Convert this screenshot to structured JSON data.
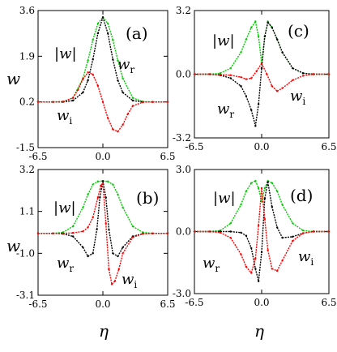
{
  "figure": {
    "ylabel": "w",
    "xlabel": "η"
  },
  "chart_data": [
    {
      "type": "line",
      "panel": "(a)",
      "xlim": [
        -6.5,
        6.5
      ],
      "ylim": [
        -1.5,
        3.6
      ],
      "xticks": [
        -6.5,
        0.0,
        6.5
      ],
      "yticks": [
        3.6,
        1.9,
        0.2,
        -1.5
      ],
      "xtick_labels": [
        "-6.5",
        "0.0",
        "6.5"
      ],
      "ytick_labels": [
        "3.6",
        "1.9",
        "0.2",
        "-1.5"
      ],
      "series": [
        {
          "name": "|w|",
          "color": "#00cc00",
          "x": [
            -6.5,
            -5,
            -4,
            -3,
            -2,
            -1.5,
            -1,
            -0.5,
            0,
            0.5,
            1,
            1.5,
            2,
            3,
            4,
            5,
            6.5
          ],
          "y": [
            0.2,
            0.2,
            0.21,
            0.35,
            1.08,
            1.74,
            2.51,
            3.12,
            3.35,
            3.12,
            2.51,
            1.74,
            1.08,
            0.35,
            0.21,
            0.2,
            0.2
          ]
        },
        {
          "name": "w_r",
          "color": "#000000",
          "x": [
            -6.5,
            -5,
            -4,
            -3,
            -2,
            -1.5,
            -1,
            -0.5,
            0,
            0.5,
            1,
            1.5,
            2,
            3,
            4,
            5,
            6.5
          ],
          "y": [
            0.2,
            0.2,
            0.2,
            0.25,
            0.55,
            1.0,
            1.78,
            2.75,
            3.35,
            2.75,
            1.78,
            1.0,
            0.55,
            0.25,
            0.2,
            0.2,
            0.2
          ]
        },
        {
          "name": "w_i",
          "color": "#ff0000",
          "x": [
            -6.5,
            -5,
            -4,
            -3,
            -2.5,
            -2,
            -1.5,
            -1,
            -0.5,
            0,
            0.5,
            1,
            1.5,
            2,
            2.5,
            3,
            4,
            5,
            6.5
          ],
          "y": [
            0.2,
            0.2,
            0.21,
            0.35,
            0.65,
            1.05,
            1.3,
            1.22,
            0.8,
            0.2,
            -0.4,
            -0.82,
            -0.9,
            -0.65,
            -0.25,
            0.05,
            0.19,
            0.2,
            0.2
          ]
        }
      ],
      "annotations": [
        {
          "text": "|w|"
        },
        {
          "text": "w_r"
        },
        {
          "text": "w_i"
        }
      ]
    },
    {
      "type": "line",
      "panel": "(c)",
      "xlim": [
        -6.5,
        6.5
      ],
      "ylim": [
        -3.2,
        3.2
      ],
      "xticks": [
        -6.5,
        0.0,
        6.5
      ],
      "yticks": [
        3.2,
        0.0,
        -3.2
      ],
      "xtick_labels": [
        "-6.5",
        "0.0",
        "6.5"
      ],
      "ytick_labels": [
        "3.2",
        "0.0",
        "-3.2"
      ],
      "series": [
        {
          "name": "|w|",
          "color": "#00cc00",
          "x": [
            -6.5,
            -5,
            -4,
            -3,
            -2,
            -1.5,
            -1,
            -0.6,
            -0.3,
            0,
            0.3,
            0.6,
            1,
            1.5,
            2,
            3,
            4,
            5,
            6.5
          ],
          "y": [
            0,
            0,
            0.05,
            0.3,
            1.1,
            1.75,
            2.35,
            2.65,
            1.9,
            0.55,
            1.9,
            2.65,
            2.35,
            1.75,
            1.1,
            0.3,
            0.05,
            0,
            0
          ]
        },
        {
          "name": "w_r",
          "color": "#000000",
          "x": [
            -6.5,
            -5,
            -4,
            -3,
            -2,
            -1.5,
            -1,
            -0.6,
            -0.3,
            0,
            0.3,
            0.6,
            1,
            1.5,
            2,
            3,
            4,
            5,
            6.5
          ],
          "y": [
            0,
            0,
            -0.05,
            -0.2,
            -0.6,
            -1.1,
            -1.8,
            -2.6,
            -1.5,
            0.3,
            1.9,
            2.6,
            2.35,
            1.75,
            1.1,
            0.3,
            0.05,
            0,
            0
          ]
        },
        {
          "name": "w_i",
          "color": "#ff0000",
          "x": [
            -6.5,
            -5,
            -4,
            -3,
            -2,
            -1.5,
            -1,
            -0.5,
            0,
            0.5,
            1,
            1.5,
            2,
            3,
            4,
            5,
            6.5
          ],
          "y": [
            0,
            0,
            -0.02,
            -0.05,
            -0.15,
            -0.25,
            -0.2,
            0.15,
            0.55,
            0.0,
            -0.6,
            -0.85,
            -0.7,
            -0.3,
            -0.08,
            0,
            0
          ]
        }
      ],
      "annotations": [
        {
          "text": "|w|"
        },
        {
          "text": "w_r"
        },
        {
          "text": "w_i"
        }
      ]
    },
    {
      "type": "line",
      "panel": "(b)",
      "xlim": [
        -6.5,
        6.5
      ],
      "ylim": [
        -3.1,
        3.2
      ],
      "xticks": [
        -6.5,
        0.0,
        6.5
      ],
      "yticks": [
        3.2,
        1.1,
        -1.0,
        -3.1
      ],
      "xtick_labels": [
        "-6.5",
        "0.0",
        "6.5"
      ],
      "ytick_labels": [
        "3.2",
        "1.1",
        "-1.0",
        "-3.1"
      ],
      "series": [
        {
          "name": "|w|",
          "color": "#00cc00",
          "x": [
            -6.5,
            -5,
            -4,
            -3,
            -2,
            -1.5,
            -1,
            -0.5,
            0,
            0.5,
            1,
            1.5,
            2,
            3,
            4,
            5,
            6.5
          ],
          "y": [
            0,
            0,
            0.05,
            0.35,
            1.3,
            1.95,
            2.45,
            2.6,
            2.62,
            2.6,
            2.45,
            1.95,
            1.3,
            0.35,
            0.05,
            0,
            0
          ]
        },
        {
          "name": "w_r",
          "color": "#000000",
          "x": [
            -6.5,
            -5,
            -4,
            -3,
            -2,
            -1.5,
            -1,
            -0.6,
            -0.3,
            0,
            0.3,
            0.6,
            1,
            1.5,
            2,
            3,
            4,
            5,
            6.5
          ],
          "y": [
            0,
            0,
            -0.02,
            -0.15,
            -0.7,
            -1.15,
            -1.0,
            0.2,
            1.8,
            2.62,
            1.8,
            0.2,
            -1.0,
            -1.15,
            -0.7,
            -0.15,
            -0.02,
            0,
            0
          ]
        },
        {
          "name": "w_i",
          "color": "#ff0000",
          "x": [
            -6.5,
            -5,
            -4,
            -3,
            -2,
            -1.5,
            -1,
            -0.5,
            -0.2,
            0,
            0.3,
            0.6,
            0.9,
            1.2,
            1.6,
            2,
            3,
            4,
            5,
            6.5
          ],
          "y": [
            0,
            0,
            0,
            0.02,
            0.1,
            0.3,
            0.8,
            1.8,
            2.4,
            2.5,
            0.5,
            -1.8,
            -2.55,
            -2.4,
            -1.8,
            -1.0,
            -0.2,
            -0.02,
            0,
            0
          ]
        }
      ],
      "annotations": [
        {
          "text": "|w|"
        },
        {
          "text": "w_r"
        },
        {
          "text": "w_i"
        }
      ]
    },
    {
      "type": "line",
      "panel": "(d)",
      "xlim": [
        -6.5,
        6.5
      ],
      "ylim": [
        -3.0,
        3.0
      ],
      "xticks": [
        -6.5,
        0.0,
        6.5
      ],
      "yticks": [
        3.0,
        0.0,
        -3.0
      ],
      "xtick_labels": [
        "-6.5",
        "0.0",
        "6.5"
      ],
      "ytick_labels": [
        "3.0",
        "0.0",
        "-3.0"
      ],
      "series": [
        {
          "name": "|w|",
          "color": "#00cc00",
          "x": [
            -6.5,
            -5,
            -4,
            -3,
            -2,
            -1.5,
            -1,
            -0.6,
            -0.3,
            0,
            0.3,
            0.6,
            1,
            1.5,
            2,
            3,
            4,
            5,
            6.5
          ],
          "y": [
            0,
            0,
            0.05,
            0.4,
            1.3,
            1.95,
            2.35,
            2.45,
            2.1,
            1.45,
            2.1,
            2.45,
            2.35,
            1.95,
            1.3,
            0.4,
            0.05,
            0,
            0
          ]
        },
        {
          "name": "w_r",
          "color": "#000000",
          "x": [
            -6.5,
            -5,
            -4,
            -3,
            -2,
            -1.5,
            -1,
            -0.6,
            -0.3,
            0,
            0.3,
            0.6,
            1,
            1.5,
            2,
            3,
            4,
            5,
            6.5
          ],
          "y": [
            0,
            0,
            0,
            0,
            -0.05,
            -0.2,
            -0.8,
            -1.8,
            -2.4,
            -1.0,
            1.6,
            2.4,
            1.2,
            0.2,
            -0.3,
            -0.25,
            -0.08,
            0,
            0
          ]
        },
        {
          "name": "w_i",
          "color": "#ff0000",
          "x": [
            -6.5,
            -5,
            -4,
            -3,
            -2,
            -1.5,
            -1,
            -0.6,
            -0.3,
            0,
            0.3,
            0.6,
            1,
            1.5,
            2,
            3,
            4,
            5,
            6.5
          ],
          "y": [
            0,
            0,
            -0.05,
            -0.3,
            -1.1,
            -1.7,
            -2.0,
            -1.3,
            0.3,
            2.1,
            0.6,
            -0.9,
            -1.8,
            -1.9,
            -1.4,
            -0.45,
            -0.08,
            0,
            0
          ]
        }
      ],
      "annotations": [
        {
          "text": "|w|"
        },
        {
          "text": "w_r"
        },
        {
          "text": "w_i"
        }
      ]
    }
  ]
}
